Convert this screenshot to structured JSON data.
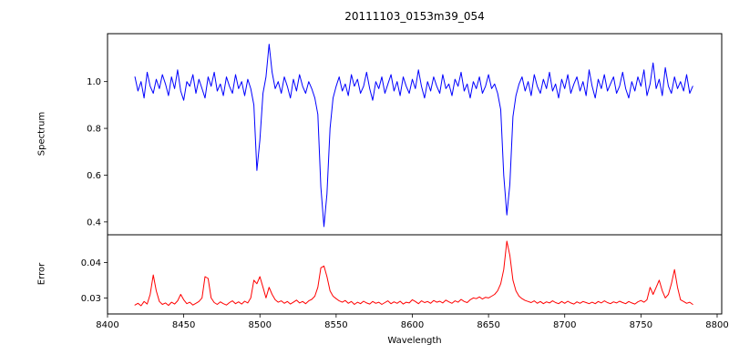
{
  "figure": {
    "background": "#ffffff"
  },
  "chart_data": {
    "type": "line",
    "title": "20111103_0153m39_054",
    "xlabel": "Wavelength",
    "xlim": [
      8400,
      8803
    ],
    "xticks": [
      8400,
      8450,
      8500,
      8550,
      8600,
      8650,
      8700,
      8750,
      8800
    ],
    "xtick_labels": [
      "8400",
      "8450",
      "8500",
      "8550",
      "8600",
      "8650",
      "8700",
      "8750",
      "8800"
    ],
    "x": {
      "start": 8418,
      "step": 2,
      "count": 184
    },
    "legend": "none",
    "grid": false,
    "subplots": [
      {
        "name": "spectrum",
        "ylabel": "Spectrum",
        "color": "#0000ff",
        "ylim": [
          0.345,
          1.205
        ],
        "yticks": [
          0.4,
          0.6,
          0.8,
          1.0
        ],
        "ytick_labels": [
          "0.4",
          "0.6",
          "0.8",
          "1.0"
        ],
        "features": "noisy continuum ~1.0 with absorption lines at 8498 (depth 0.62), 8542 (depth 0.38), 8662 (depth 0.43) and emission spike at 8506 (1.16)",
        "values": [
          1.02,
          0.96,
          1.0,
          0.93,
          1.04,
          0.98,
          0.95,
          1.01,
          0.97,
          1.03,
          0.99,
          0.94,
          1.02,
          0.97,
          1.05,
          0.96,
          0.92,
          1.0,
          0.98,
          1.03,
          0.95,
          1.01,
          0.97,
          0.93,
          1.02,
          0.98,
          1.04,
          0.96,
          0.99,
          0.94,
          1.02,
          0.98,
          0.95,
          1.03,
          0.97,
          1.0,
          0.94,
          1.01,
          0.97,
          0.9,
          0.62,
          0.75,
          0.95,
          1.02,
          1.16,
          1.04,
          0.97,
          1.0,
          0.95,
          1.02,
          0.98,
          0.93,
          1.01,
          0.96,
          1.03,
          0.98,
          0.95,
          1.0,
          0.97,
          0.93,
          0.86,
          0.55,
          0.38,
          0.52,
          0.8,
          0.93,
          0.98,
          1.02,
          0.96,
          0.99,
          0.94,
          1.03,
          0.98,
          1.01,
          0.95,
          0.98,
          1.04,
          0.97,
          0.92,
          1.0,
          0.97,
          1.02,
          0.95,
          0.99,
          1.03,
          0.96,
          1.0,
          0.94,
          1.02,
          0.98,
          0.95,
          1.01,
          0.97,
          1.05,
          0.98,
          0.93,
          1.0,
          0.96,
          1.02,
          0.98,
          0.95,
          1.03,
          0.97,
          0.99,
          0.94,
          1.01,
          0.98,
          1.04,
          0.96,
          0.99,
          0.93,
          1.0,
          0.97,
          1.02,
          0.95,
          0.98,
          1.03,
          0.97,
          0.99,
          0.95,
          0.88,
          0.6,
          0.43,
          0.56,
          0.85,
          0.94,
          0.99,
          1.02,
          0.96,
          1.0,
          0.94,
          1.03,
          0.98,
          0.95,
          1.01,
          0.97,
          1.04,
          0.96,
          0.99,
          0.93,
          1.01,
          0.97,
          1.03,
          0.95,
          0.99,
          1.02,
          0.96,
          1.0,
          0.94,
          1.05,
          0.98,
          0.93,
          1.01,
          0.97,
          1.03,
          0.96,
          0.99,
          1.02,
          0.95,
          0.98,
          1.04,
          0.97,
          0.93,
          1.0,
          0.96,
          1.02,
          0.98,
          1.05,
          0.94,
          0.99,
          1.08,
          0.97,
          1.01,
          0.94,
          1.06,
          0.98,
          0.95,
          1.02,
          0.97,
          1.0,
          0.96,
          1.03,
          0.95,
          0.98
        ]
      },
      {
        "name": "error",
        "ylabel": "Error",
        "color": "#ff0000",
        "ylim": [
          0.0255,
          0.0478
        ],
        "yticks": [
          0.03,
          0.04
        ],
        "ytick_labels": [
          "0.03",
          "0.04"
        ],
        "features": "baseline ~0.0285 with peaks at 8430, 8464, 8498, 8542, and largest peak 0.046 at 8662; smaller peaks near 8760-8772",
        "values": [
          0.028,
          0.0285,
          0.0278,
          0.029,
          0.0283,
          0.031,
          0.0365,
          0.032,
          0.029,
          0.0282,
          0.0286,
          0.0279,
          0.0288,
          0.0283,
          0.0292,
          0.031,
          0.0295,
          0.0284,
          0.0288,
          0.028,
          0.0285,
          0.029,
          0.03,
          0.036,
          0.0355,
          0.03,
          0.0287,
          0.0282,
          0.0289,
          0.0284,
          0.028,
          0.0287,
          0.0292,
          0.0284,
          0.0289,
          0.0283,
          0.0291,
          0.0286,
          0.03,
          0.035,
          0.034,
          0.036,
          0.033,
          0.03,
          0.033,
          0.031,
          0.0295,
          0.0288,
          0.0292,
          0.0285,
          0.029,
          0.0283,
          0.0288,
          0.0294,
          0.0286,
          0.029,
          0.0284,
          0.0292,
          0.0296,
          0.0305,
          0.033,
          0.0385,
          0.039,
          0.036,
          0.032,
          0.0305,
          0.0298,
          0.0292,
          0.0288,
          0.0293,
          0.0285,
          0.029,
          0.0282,
          0.0288,
          0.0284,
          0.0291,
          0.0286,
          0.0283,
          0.029,
          0.0285,
          0.0288,
          0.0282,
          0.0287,
          0.0292,
          0.0284,
          0.0289,
          0.0285,
          0.0291,
          0.0283,
          0.0288,
          0.0286,
          0.0295,
          0.029,
          0.0284,
          0.0292,
          0.0287,
          0.029,
          0.0285,
          0.0293,
          0.0288,
          0.0291,
          0.0286,
          0.0294,
          0.0289,
          0.0285,
          0.0292,
          0.0288,
          0.0296,
          0.029,
          0.0287,
          0.0295,
          0.03,
          0.0298,
          0.0303,
          0.0297,
          0.0302,
          0.03,
          0.0305,
          0.031,
          0.032,
          0.034,
          0.038,
          0.046,
          0.042,
          0.035,
          0.032,
          0.0305,
          0.0298,
          0.0293,
          0.029,
          0.0287,
          0.0292,
          0.0285,
          0.029,
          0.0284,
          0.0289,
          0.0286,
          0.0292,
          0.0287,
          0.0284,
          0.029,
          0.0285,
          0.0291,
          0.0286,
          0.0283,
          0.0289,
          0.0285,
          0.029,
          0.0287,
          0.0284,
          0.0288,
          0.0284,
          0.029,
          0.0286,
          0.0292,
          0.0287,
          0.0284,
          0.0289,
          0.0286,
          0.0291,
          0.0287,
          0.0284,
          0.029,
          0.0286,
          0.0283,
          0.0289,
          0.0293,
          0.0288,
          0.0295,
          0.033,
          0.031,
          0.033,
          0.035,
          0.032,
          0.03,
          0.031,
          0.034,
          0.038,
          0.033,
          0.0295,
          0.029,
          0.0285,
          0.0288,
          0.0282
        ]
      }
    ]
  }
}
